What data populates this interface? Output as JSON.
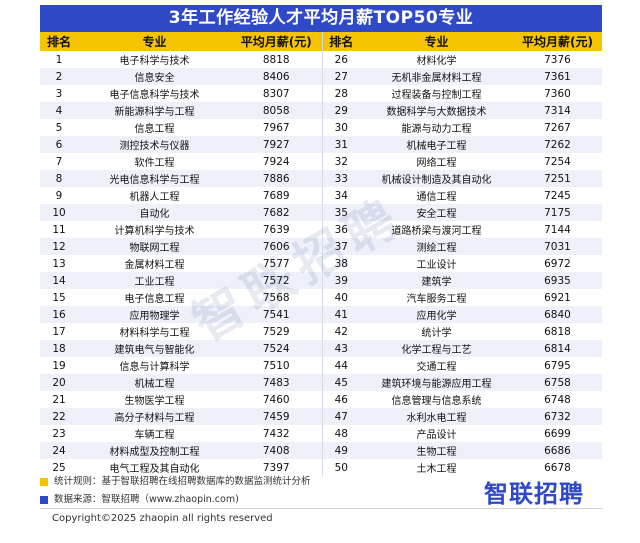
{
  "title": "3年工作经验人才平均月薪TOP50专业",
  "chart_data": {
    "type": "table",
    "columns": [
      "排名",
      "专业",
      "平均月薪(元)",
      "排名",
      "专业",
      "平均月薪(元)"
    ],
    "rows": [
      {
        "rank": "1",
        "major": "电子科学与技术",
        "salary": 8818
      },
      {
        "rank": "2",
        "major": "信息安全",
        "salary": 8406
      },
      {
        "rank": "3",
        "major": "电子信息科学与技术",
        "salary": 8307
      },
      {
        "rank": "4",
        "major": "新能源科学与工程",
        "salary": 8058
      },
      {
        "rank": "5",
        "major": "信息工程",
        "salary": 7967
      },
      {
        "rank": "6",
        "major": "测控技术与仪器",
        "salary": 7927
      },
      {
        "rank": "7",
        "major": "软件工程",
        "salary": 7924
      },
      {
        "rank": "8",
        "major": "光电信息科学与工程",
        "salary": 7886
      },
      {
        "rank": "9",
        "major": "机器人工程",
        "salary": 7689
      },
      {
        "rank": "10",
        "major": "自动化",
        "salary": 7682
      },
      {
        "rank": "11",
        "major": "计算机科学与技术",
        "salary": 7639
      },
      {
        "rank": "12",
        "major": "物联网工程",
        "salary": 7606
      },
      {
        "rank": "13",
        "major": "金属材料工程",
        "salary": 7577
      },
      {
        "rank": "14",
        "major": "工业工程",
        "salary": 7572
      },
      {
        "rank": "15",
        "major": "电子信息工程",
        "salary": 7568
      },
      {
        "rank": "16",
        "major": "应用物理学",
        "salary": 7541
      },
      {
        "rank": "17",
        "major": "材料科学与工程",
        "salary": 7529
      },
      {
        "rank": "18",
        "major": "建筑电气与智能化",
        "salary": 7524
      },
      {
        "rank": "19",
        "major": "信息与计算科学",
        "salary": 7510
      },
      {
        "rank": "20",
        "major": "机械工程",
        "salary": 7483
      },
      {
        "rank": "21",
        "major": "生物医学工程",
        "salary": 7460
      },
      {
        "rank": "22",
        "major": "高分子材料与工程",
        "salary": 7459
      },
      {
        "rank": "23",
        "major": "车辆工程",
        "salary": 7432
      },
      {
        "rank": "24",
        "major": "材料成型及控制工程",
        "salary": 7408
      },
      {
        "rank": "25",
        "major": "电气工程及其自动化",
        "salary": 7397
      },
      {
        "rank": "26",
        "major": "材料化学",
        "salary": 7376
      },
      {
        "rank": "27",
        "major": "无机非金属材料工程",
        "salary": 7361
      },
      {
        "rank": "28",
        "major": "过程装备与控制工程",
        "salary": 7360
      },
      {
        "rank": "29",
        "major": "数据科学与大数据技术",
        "salary": 7314
      },
      {
        "rank": "30",
        "major": "能源与动力工程",
        "salary": 7267
      },
      {
        "rank": "31",
        "major": "机械电子工程",
        "salary": 7262
      },
      {
        "rank": "32",
        "major": "网络工程",
        "salary": 7254
      },
      {
        "rank": "33",
        "major": "机械设计制造及其自动化",
        "salary": 7251
      },
      {
        "rank": "34",
        "major": "通信工程",
        "salary": 7245
      },
      {
        "rank": "35",
        "major": "安全工程",
        "salary": 7175
      },
      {
        "rank": "36",
        "major": "道路桥梁与渡河工程",
        "salary": 7144
      },
      {
        "rank": "37",
        "major": "测绘工程",
        "salary": 7031
      },
      {
        "rank": "38",
        "major": "工业设计",
        "salary": 6972
      },
      {
        "rank": "39",
        "major": "建筑学",
        "salary": 6935
      },
      {
        "rank": "40",
        "major": "汽车服务工程",
        "salary": 6921
      },
      {
        "rank": "41",
        "major": "应用化学",
        "salary": 6840
      },
      {
        "rank": "42",
        "major": "统计学",
        "salary": 6818
      },
      {
        "rank": "43",
        "major": "化学工程与工艺",
        "salary": 6814
      },
      {
        "rank": "44",
        "major": "交通工程",
        "salary": 6795
      },
      {
        "rank": "45",
        "major": "建筑环境与能源应用工程",
        "salary": 6758
      },
      {
        "rank": "46",
        "major": "信息管理与信息系统",
        "salary": 6748
      },
      {
        "rank": "47",
        "major": "水利水电工程",
        "salary": 6732
      },
      {
        "rank": "48",
        "major": "产品设计",
        "salary": 6699
      },
      {
        "rank": "49",
        "major": "生物工程",
        "salary": 6686
      },
      {
        "rank": "50",
        "major": "土木工程",
        "salary": 6678
      }
    ]
  },
  "footer": {
    "note_rule": "统计规则：基于智联招聘在线招聘数据库的数据监测统计分析",
    "note_source": "数据来源：智联招聘（www.zhaopin.com)",
    "logo_text": "智联招聘",
    "watermark": "智联招聘",
    "copyright": "Copyright©2025 zhaopin all rights reserved"
  },
  "colors": {
    "title_bg": "#2f49c7",
    "header_bg": "#f5c400",
    "row_alt": "#eef1fa",
    "logo": "#2f49c7"
  }
}
